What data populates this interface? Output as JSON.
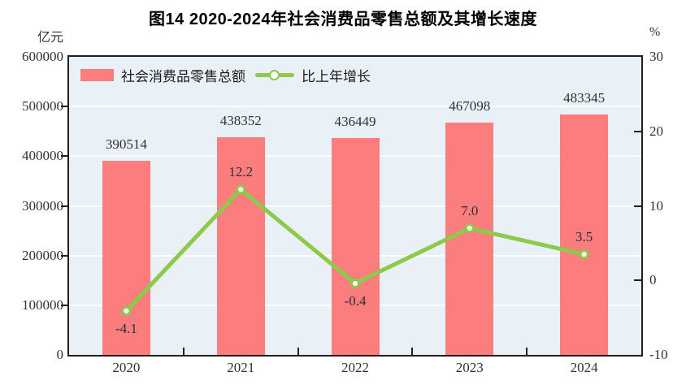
{
  "title": "图14  2020-2024年社会消费品零售总额及其增长速度",
  "left_axis_unit": "亿元",
  "right_axis_unit": "%",
  "legend": {
    "bar_label": "社会消费品零售总额",
    "line_label": "比上年增长"
  },
  "colors": {
    "bar": "#fb7d7d",
    "line": "#8dc94b",
    "marker_fill": "#ffffff",
    "plot_bg": "#eaf1f6",
    "gridline": "#ffffff",
    "axis": "#1f1f1f",
    "text": "#2f3138"
  },
  "chart_data": {
    "type": "bar",
    "subtype": "bar+line dual axis",
    "categories": [
      "2020",
      "2021",
      "2022",
      "2023",
      "2024"
    ],
    "series": [
      {
        "name": "社会消费品零售总额",
        "type": "bar",
        "axis": "left",
        "values": [
          390514,
          438352,
          436449,
          467098,
          483345
        ],
        "labels": [
          "390514",
          "438352",
          "436449",
          "467098",
          "483345"
        ]
      },
      {
        "name": "比上年增长",
        "type": "line",
        "axis": "right",
        "values": [
          -4.1,
          12.2,
          -0.4,
          7.0,
          3.5
        ],
        "labels": [
          "-4.1",
          "12.2",
          "-0.4",
          "7.0",
          "3.5"
        ],
        "label_positions": [
          "below",
          "above",
          "below",
          "above",
          "above"
        ]
      }
    ],
    "left_axis": {
      "min": 0,
      "max": 600000,
      "step": 100000,
      "tick_labels": [
        "600000",
        "500000",
        "400000",
        "300000",
        "200000",
        "100000",
        "0"
      ]
    },
    "right_axis": {
      "min": -10,
      "max": 30,
      "step": 10,
      "tick_labels": [
        "30",
        "20",
        "10",
        "0",
        "-10"
      ]
    },
    "grid": "horizontal gridlines at each left-axis step",
    "legend_position": "top-left inside plot"
  }
}
